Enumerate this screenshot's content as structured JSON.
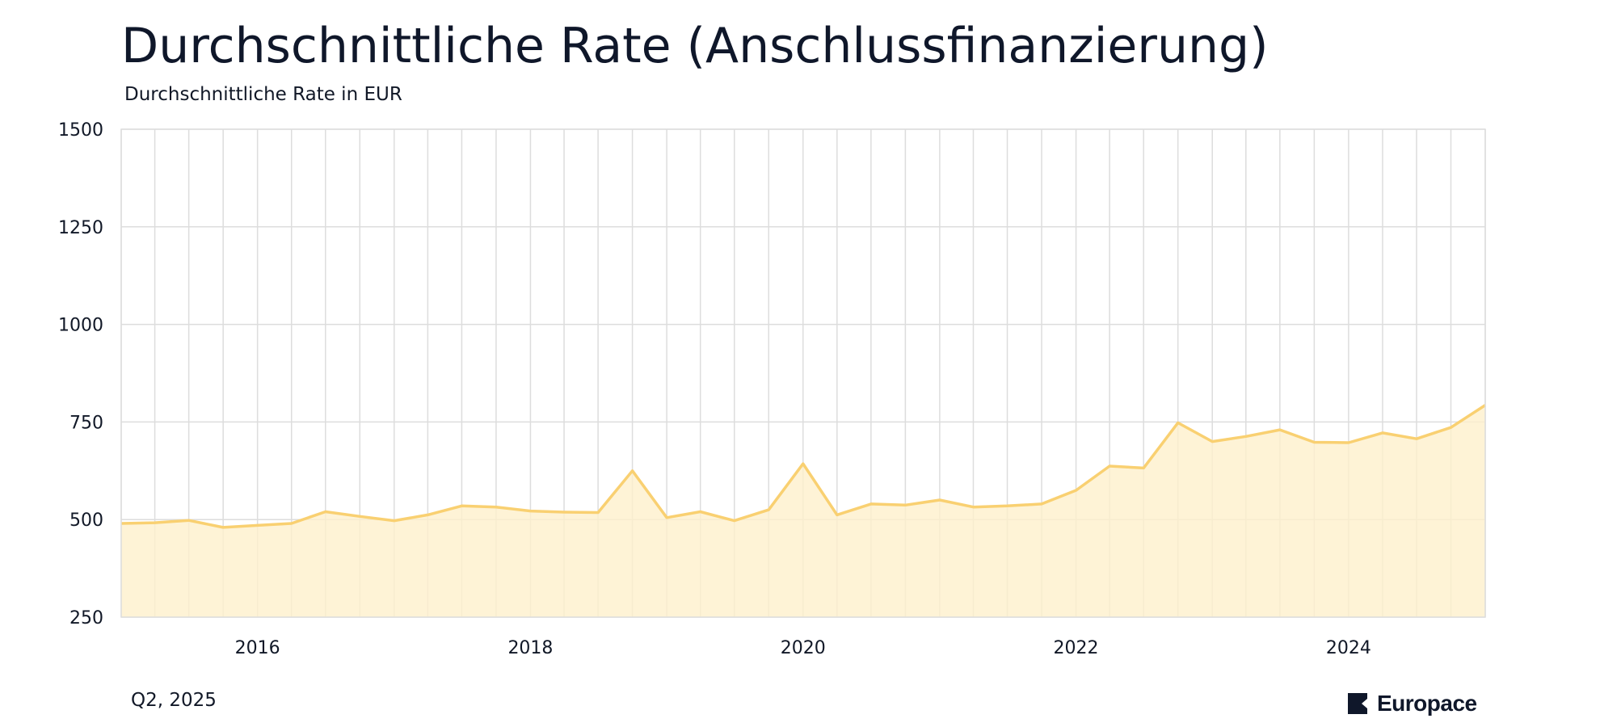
{
  "header": {
    "title": "Durchschnittliche Rate (Anschlussfinanzierung)",
    "subtitle": "Durchschnittliche Rate in EUR"
  },
  "footer": {
    "period": "Q2, 2025",
    "logo_text": "Europace"
  },
  "colors": {
    "line": "#f9d071",
    "fill": "#fef0cc",
    "grid": "#dddddd",
    "text": "#111827",
    "logo": "#0f172a"
  },
  "chart_data": {
    "type": "area",
    "title": "Durchschnittliche Rate (Anschlussfinanzierung)",
    "subtitle": "Durchschnittliche Rate in EUR",
    "ylabel": "",
    "xlabel": "",
    "ylim": [
      250,
      1500
    ],
    "xlim": [
      "2015-01-01",
      "2025-01-01"
    ],
    "yticks": [
      250,
      500,
      750,
      1000,
      1250,
      1500
    ],
    "xticks": [
      "2016",
      "2018",
      "2020",
      "2022",
      "2024"
    ],
    "grid": true,
    "x": [
      "2015-01-01",
      "2015-04-01",
      "2015-07-01",
      "2015-10-01",
      "2016-01-01",
      "2016-04-01",
      "2016-07-01",
      "2016-10-01",
      "2017-01-01",
      "2017-04-01",
      "2017-07-01",
      "2017-10-01",
      "2018-01-01",
      "2018-04-01",
      "2018-07-01",
      "2018-10-01",
      "2019-01-01",
      "2019-04-01",
      "2019-07-01",
      "2019-10-01",
      "2020-01-01",
      "2020-04-01",
      "2020-07-01",
      "2020-10-01",
      "2021-01-01",
      "2021-04-01",
      "2021-07-01",
      "2021-10-01",
      "2022-01-01",
      "2022-04-01",
      "2022-07-01",
      "2022-10-01",
      "2023-01-01",
      "2023-04-01",
      "2023-07-01",
      "2023-10-01",
      "2024-01-01",
      "2024-04-01",
      "2024-07-01",
      "2024-10-01",
      "2025-01-01"
    ],
    "values": [
      490,
      492,
      498,
      480,
      485,
      490,
      520,
      508,
      497,
      512,
      535,
      532,
      522,
      519,
      518,
      625,
      505,
      520,
      497,
      525,
      643,
      512,
      540,
      537,
      550,
      532,
      535,
      540,
      575,
      637,
      632,
      748,
      700,
      713,
      730,
      698,
      697,
      722,
      707,
      736,
      793
    ]
  }
}
